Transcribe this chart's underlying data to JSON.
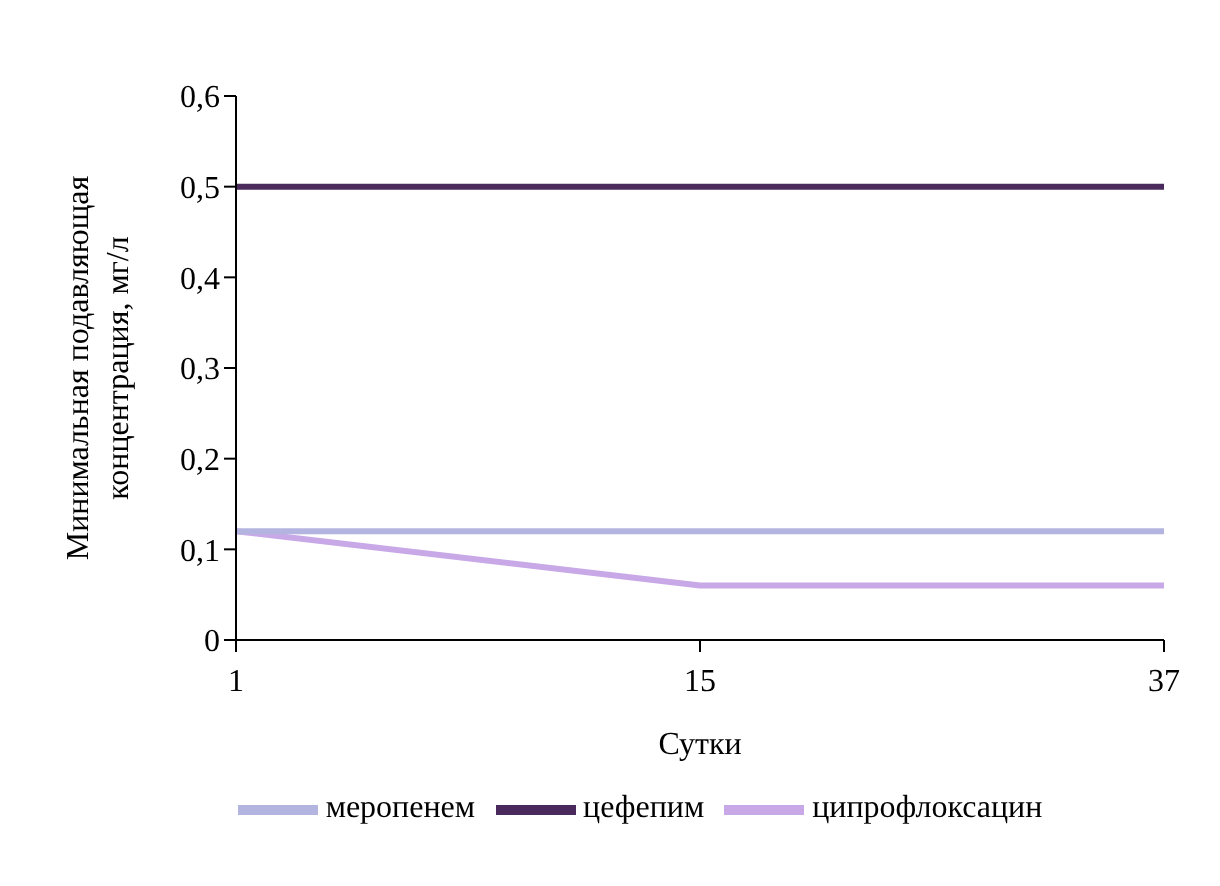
{
  "chart_data": {
    "type": "line",
    "xlabel": "Сутки",
    "ylabel": "Минимальная подавляющая концентрация, мг/л",
    "categories": [
      "1",
      "15",
      "37"
    ],
    "series": [
      {
        "name": "ципрофлоксацин",
        "color": "#c8a8e6",
        "values": [
          0.12,
          0.06,
          0.06
        ]
      },
      {
        "name": "меропенем",
        "color": "#b4b4e0",
        "values": [
          0.12,
          0.12,
          0.12
        ]
      },
      {
        "name": "цефепим",
        "color": "#4a2a5c",
        "values": [
          0.5,
          0.5,
          0.5
        ]
      }
    ],
    "ylim": [
      0,
      0.6
    ],
    "yticks": [
      {
        "value": 0,
        "label": "0"
      },
      {
        "value": 0.1,
        "label": "0,1"
      },
      {
        "value": 0.2,
        "label": "0,2"
      },
      {
        "value": 0.3,
        "label": "0,3"
      },
      {
        "value": 0.4,
        "label": "0,4"
      },
      {
        "value": 0.5,
        "label": "0,5"
      },
      {
        "value": 0.6,
        "label": "0,6"
      }
    ],
    "grid": false,
    "legend": "bottom",
    "marker": "none",
    "line_style": "solid"
  }
}
